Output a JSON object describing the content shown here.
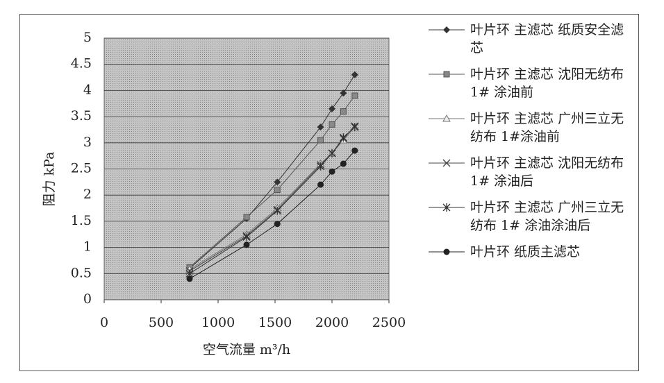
{
  "chart_data": {
    "type": "line",
    "y_label": "阻力 kPa",
    "x_label": "空气流量 m³/h",
    "x": [
      750,
      1250,
      1520,
      1900,
      2000,
      2100,
      2200
    ],
    "xlim": [
      0,
      2500
    ],
    "xticks": [
      0,
      500,
      1000,
      1500,
      2000,
      2500
    ],
    "ylim": [
      0,
      5
    ],
    "yticks": [
      0,
      0.5,
      1,
      1.5,
      2,
      2.5,
      3,
      3.5,
      4,
      4.5,
      5
    ],
    "grid": true,
    "series": [
      {
        "name": "叶片环 主滤芯 纸质安全滤芯",
        "color": "#333333",
        "marker": "diamond",
        "values": [
          0.6,
          1.55,
          2.25,
          3.3,
          3.65,
          3.95,
          4.3
        ]
      },
      {
        "name": "叶片环 主滤芯 沈阳无纺布 1# 涂油前",
        "color": "#555555",
        "marker": "square",
        "values": [
          0.62,
          1.58,
          2.1,
          3.05,
          3.35,
          3.6,
          3.9
        ]
      },
      {
        "name": "叶片环 主滤芯 广州三立无纺布 1#涂油前",
        "color": "#777777",
        "marker": "triangle",
        "values": [
          0.58,
          1.25,
          1.75,
          2.6,
          2.8,
          3.05,
          3.3
        ]
      },
      {
        "name": "叶片环 主滤芯 沈阳无纺布 1# 涂油后",
        "color": "#444444",
        "marker": "x",
        "values": [
          0.55,
          1.22,
          1.72,
          2.58,
          2.8,
          3.08,
          3.32
        ]
      },
      {
        "name": "叶片环 主滤芯 广州三立无纺布 1# 涂油涂油后",
        "color": "#333333",
        "marker": "star",
        "values": [
          0.5,
          1.2,
          1.7,
          2.55,
          2.8,
          3.1,
          3.3
        ]
      },
      {
        "name": "叶片环 纸质主滤芯",
        "color": "#222222",
        "marker": "circle",
        "values": [
          0.4,
          1.05,
          1.45,
          2.2,
          2.45,
          2.6,
          2.85
        ]
      }
    ]
  }
}
